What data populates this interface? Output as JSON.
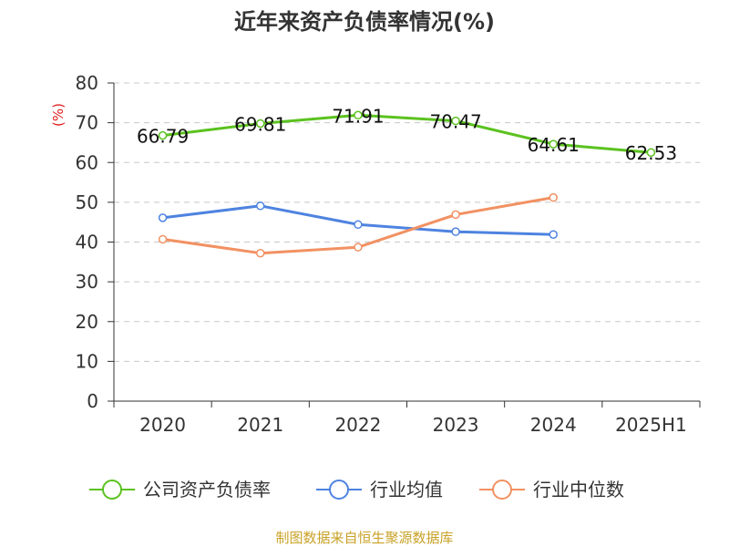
{
  "chart_data": {
    "type": "line",
    "title": "近年来资产负债率情况(%)",
    "ylabel": "(%)",
    "xlabel": "",
    "categories": [
      "2020",
      "2021",
      "2022",
      "2023",
      "2024",
      "2025H1"
    ],
    "ylim": [
      0,
      80
    ],
    "yticks": [
      0,
      10,
      20,
      30,
      40,
      50,
      60,
      70,
      80
    ],
    "grid": "horizontal dashed",
    "legend_position": "bottom",
    "series": [
      {
        "name": "公司资产负债率",
        "color": "#5bc21f",
        "values": [
          66.79,
          69.81,
          71.91,
          70.47,
          64.61,
          62.53
        ],
        "labels": [
          "66.79",
          "69.81",
          "71.91",
          "70.47",
          "64.61",
          "62.53"
        ]
      },
      {
        "name": "行业均值",
        "color": "#4e83e0",
        "values": [
          46.1,
          49.1,
          44.4,
          42.6,
          41.9,
          null
        ]
      },
      {
        "name": "行业中位数",
        "color": "#f29162",
        "values": [
          40.7,
          37.2,
          38.7,
          46.9,
          51.2,
          null
        ]
      }
    ],
    "source": "制图数据来自恒生聚源数据库"
  }
}
